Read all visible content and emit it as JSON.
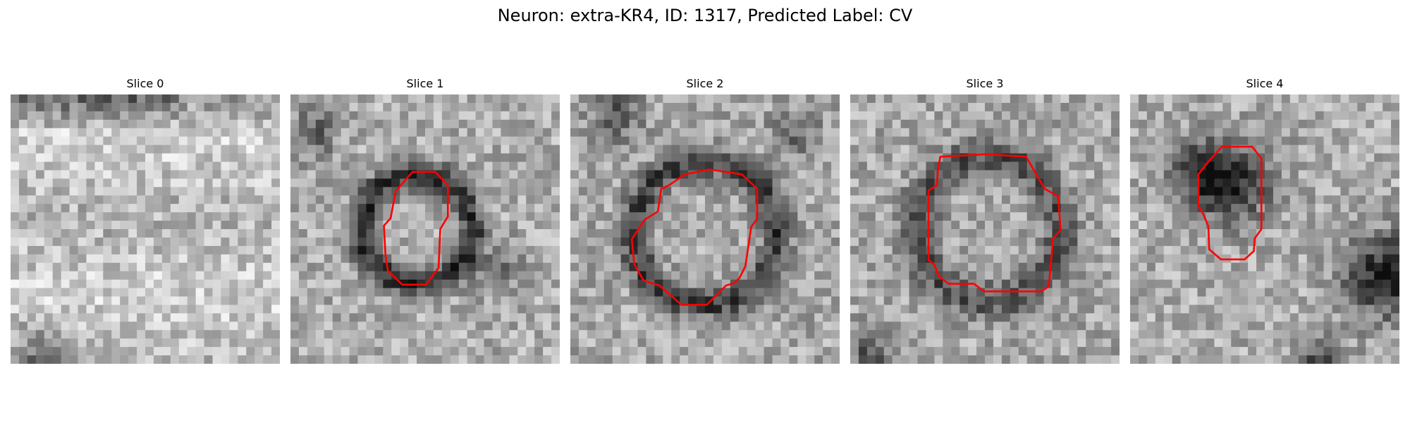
{
  "title": "Neuron: extra-KR4, ID: 1317, Predicted Label: CV",
  "contour_color": "#ff0000",
  "slices": [
    {
      "label": "Slice 0",
      "has_contour": false
    },
    {
      "label": "Slice 1",
      "has_contour": true
    },
    {
      "label": "Slice 2",
      "has_contour": true
    },
    {
      "label": "Slice 3",
      "has_contour": true
    },
    {
      "label": "Slice 4",
      "has_contour": true
    }
  ]
}
